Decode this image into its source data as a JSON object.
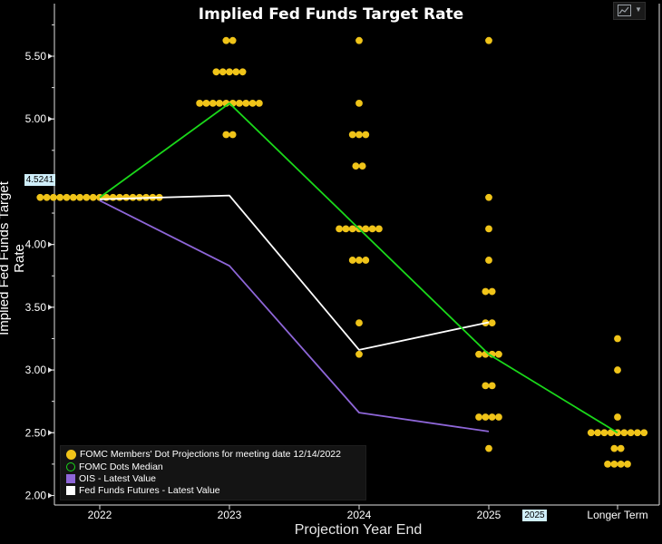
{
  "chart_data": {
    "type": "scatter",
    "title": "Implied Fed Funds Target Rate",
    "xlabel": "Projection Year End",
    "ylabel": "Implied Fed Funds Target Rate",
    "categories": [
      "2022",
      "2023",
      "2024",
      "2025",
      "Longer Term"
    ],
    "ylim": [
      2.0,
      5.75
    ],
    "yticks": [
      "2.00",
      "2.50",
      "3.00",
      "3.50",
      "4.00",
      "4.50",
      "5.00",
      "5.50"
    ],
    "grid": false,
    "legend_position": "bottom-left",
    "crosshair": {
      "y_value_label": "4.5241",
      "x_value_label": "2025"
    },
    "series": [
      {
        "name": "FOMC Members' Dot Projections for meeting date 12/14/2022",
        "kind": "dots",
        "color": "#f0c419",
        "points": [
          {
            "x": "2022",
            "y": 4.375,
            "count": 19
          },
          {
            "x": "2023",
            "y": 5.625,
            "count": 2
          },
          {
            "x": "2023",
            "y": 5.375,
            "count": 5
          },
          {
            "x": "2023",
            "y": 5.125,
            "count": 10
          },
          {
            "x": "2023",
            "y": 4.875,
            "count": 2
          },
          {
            "x": "2024",
            "y": 5.625,
            "count": 1
          },
          {
            "x": "2024",
            "y": 5.125,
            "count": 1
          },
          {
            "x": "2024",
            "y": 4.875,
            "count": 3
          },
          {
            "x": "2024",
            "y": 4.625,
            "count": 2
          },
          {
            "x": "2024",
            "y": 4.125,
            "count": 7
          },
          {
            "x": "2024",
            "y": 3.875,
            "count": 3
          },
          {
            "x": "2024",
            "y": 3.375,
            "count": 1
          },
          {
            "x": "2024",
            "y": 3.125,
            "count": 1
          },
          {
            "x": "2025",
            "y": 5.625,
            "count": 1
          },
          {
            "x": "2025",
            "y": 4.375,
            "count": 1
          },
          {
            "x": "2025",
            "y": 4.125,
            "count": 1
          },
          {
            "x": "2025",
            "y": 3.875,
            "count": 1
          },
          {
            "x": "2025",
            "y": 3.625,
            "count": 2
          },
          {
            "x": "2025",
            "y": 3.375,
            "count": 2
          },
          {
            "x": "2025",
            "y": 3.125,
            "count": 4
          },
          {
            "x": "2025",
            "y": 2.875,
            "count": 2
          },
          {
            "x": "2025",
            "y": 2.625,
            "count": 4
          },
          {
            "x": "2025",
            "y": 2.375,
            "count": 1
          },
          {
            "x": "Longer Term",
            "y": 3.25,
            "count": 1
          },
          {
            "x": "Longer Term",
            "y": 3.0,
            "count": 1
          },
          {
            "x": "Longer Term",
            "y": 2.625,
            "count": 1
          },
          {
            "x": "Longer Term",
            "y": 2.5,
            "count": 9
          },
          {
            "x": "Longer Term",
            "y": 2.375,
            "count": 2
          },
          {
            "x": "Longer Term",
            "y": 2.25,
            "count": 4
          }
        ]
      },
      {
        "name": "FOMC Dots Median",
        "kind": "line",
        "color": "#1ad81a",
        "x": [
          "2022",
          "2023",
          "2024",
          "2025",
          "Longer Term"
        ],
        "y": [
          4.375,
          5.125,
          4.125,
          3.125,
          2.5
        ]
      },
      {
        "name": "OIS - Latest Value",
        "kind": "line",
        "color": "#8e66d8",
        "x": [
          "2022",
          "2023",
          "2024",
          "2025"
        ],
        "y": [
          4.35,
          3.83,
          2.66,
          2.51
        ]
      },
      {
        "name": "Fed Funds Futures - Latest Value",
        "kind": "line",
        "color": "#ffffff",
        "x": [
          "2022",
          "2023",
          "2024",
          "2025"
        ],
        "y": [
          4.36,
          4.39,
          3.16,
          3.38
        ]
      }
    ]
  },
  "toolbar": {
    "chart_type_icon": "line-chart-icon",
    "menu_icon": "caret-down-icon"
  }
}
